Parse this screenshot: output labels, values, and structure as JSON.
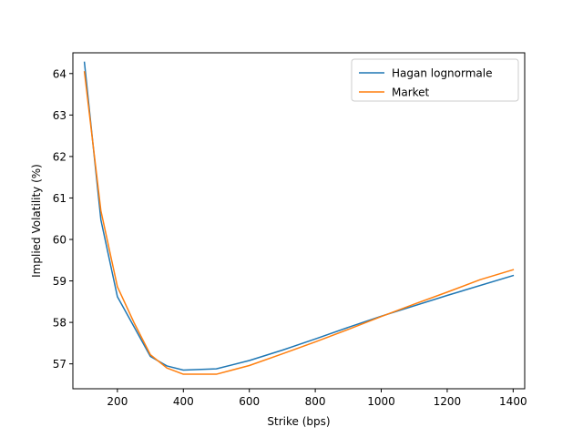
{
  "chart_data": {
    "type": "line",
    "title": "",
    "xlabel": "Strike (bps)",
    "ylabel": "Implied Volatility (%)",
    "xlim": [
      65,
      1435
    ],
    "ylim": [
      56.4,
      64.5
    ],
    "xticks": [
      200,
      400,
      600,
      800,
      1000,
      1200,
      1400
    ],
    "yticks": [
      57,
      58,
      59,
      60,
      61,
      62,
      63,
      64
    ],
    "grid": false,
    "legend_position": "top-right",
    "series": [
      {
        "name": "Hagan lognormale",
        "color": "#1f77b4",
        "x": [
          100,
          150,
          200,
          250,
          300,
          350,
          400,
          500,
          600,
          700,
          800,
          900,
          1000,
          1200,
          1400
        ],
        "y": [
          64.27,
          60.47,
          58.62,
          57.9,
          57.18,
          56.95,
          56.85,
          56.88,
          57.08,
          57.33,
          57.6,
          57.88,
          58.15,
          58.65,
          59.13
        ]
      },
      {
        "name": "Market",
        "color": "#ff7f0e",
        "x": [
          100,
          150,
          200,
          250,
          300,
          350,
          400,
          500,
          600,
          700,
          800,
          900,
          1000,
          1100,
          1200,
          1300,
          1400
        ],
        "y": [
          64.04,
          60.69,
          58.86,
          58.0,
          57.22,
          56.9,
          56.75,
          56.75,
          56.96,
          57.24,
          57.53,
          57.83,
          58.14,
          58.44,
          58.73,
          59.03,
          59.27
        ]
      }
    ]
  }
}
